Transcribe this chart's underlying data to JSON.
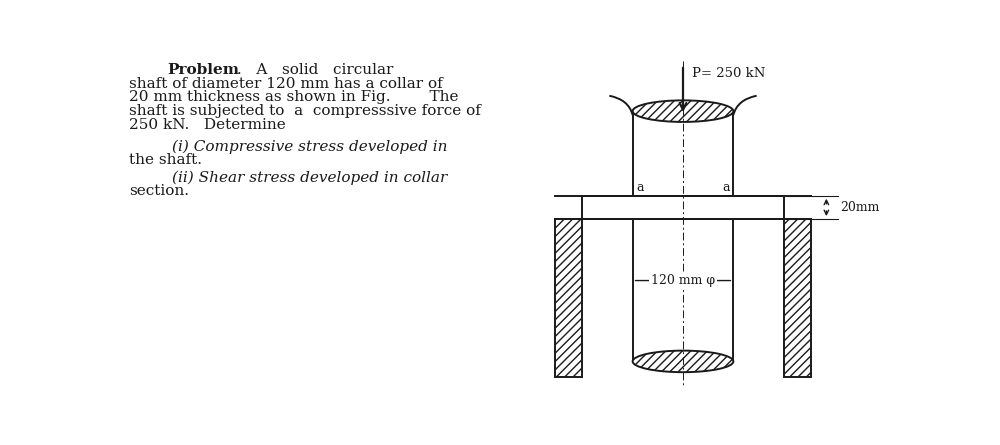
{
  "bg_color": "#ffffff",
  "text_color": "#1a1a1a",
  "label_P": "P= 250 kN",
  "label_dia": "120 mm φ",
  "label_thick": "20mm",
  "label_a_left": "a",
  "label_a_right": "a",
  "line_color": "#1a1a1a",
  "fs_main": 11.0,
  "fs_diagram": 9.5
}
